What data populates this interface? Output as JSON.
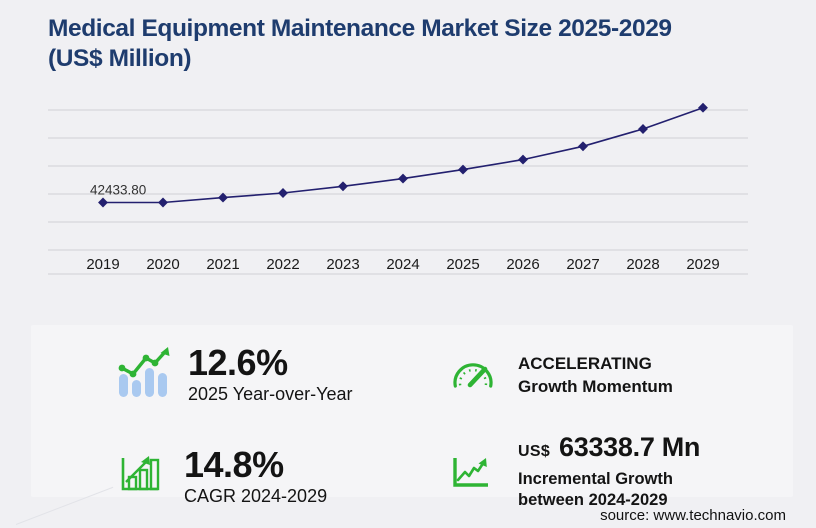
{
  "title": {
    "line1": "Medical Equipment Maintenance Market Size 2025-2029",
    "line2": "(US$ Million)"
  },
  "chart_data": {
    "type": "line",
    "title": "Medical Equipment Maintenance Market Size 2025-2029 (US$ Million)",
    "categories": [
      "2019",
      "2020",
      "2021",
      "2022",
      "2023",
      "2024",
      "2025",
      "2026",
      "2027",
      "2028",
      "2029"
    ],
    "values": [
      42433.8,
      42430,
      46800,
      50900,
      56900,
      63725,
      71754,
      80700,
      92600,
      108000,
      127064
    ],
    "data_labels": [
      {
        "index": 0,
        "text": "42433.80"
      }
    ],
    "xlabel": "",
    "ylabel": "",
    "ylim": [
      0,
      125000
    ],
    "gridline_step": 25000,
    "grid_on": true,
    "legend": null,
    "marker": "diamond",
    "line_color": "#23206f",
    "grid_color": "#cfcfd4",
    "label_color": "#333333"
  },
  "stats": {
    "yoy": {
      "value": "12.6%",
      "label": "2025 Year-over-Year",
      "icon": "growth-trend-bars-icon"
    },
    "momentum": {
      "line1": "ACCELERATING",
      "line2": "Growth Momentum",
      "icon": "speedometer-icon"
    },
    "cagr": {
      "value": "14.8%",
      "label": "CAGR 2024-2029",
      "icon": "bar-chart-growth-icon"
    },
    "incremental": {
      "currency": "US$",
      "value": "63338.7 Mn",
      "line1": "Incremental Growth",
      "line2": "between 2024-2029",
      "icon": "trend-arrow-icon"
    }
  },
  "footer": {
    "source": "source: www.technavio.com"
  },
  "colors": {
    "title_navy": "#1e3c6e",
    "line_navy": "#23206f",
    "accent_green": "#2eb434",
    "light_blue": "#a9c9f0",
    "grid": "#cfcfd4",
    "background": "#f0f0f3",
    "panel": "#f5f5f7",
    "text": "#141414"
  }
}
